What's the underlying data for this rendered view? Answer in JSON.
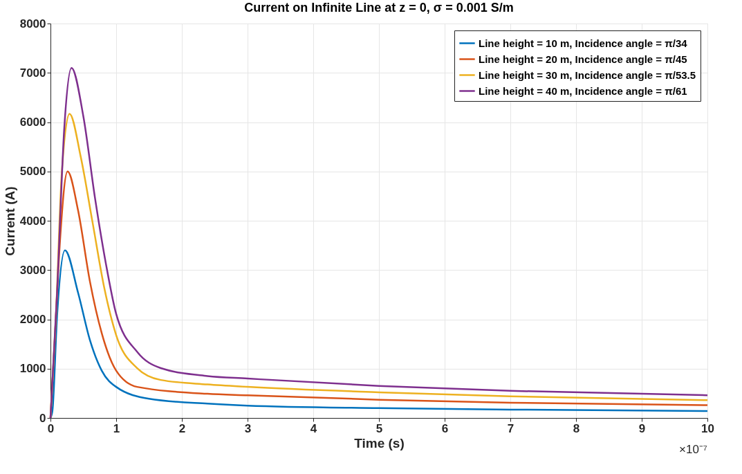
{
  "chart_data": {
    "type": "line",
    "title": "Current on Infinite Line at z = 0, σ = 0.001 S/m",
    "xlabel": "Time (s)",
    "ylabel": "Current (A)",
    "xlim": [
      0,
      10
    ],
    "xticks": [
      0,
      1,
      2,
      3,
      4,
      5,
      6,
      7,
      8,
      9,
      10
    ],
    "ylim": [
      0,
      8000
    ],
    "yticks": [
      0,
      1000,
      2000,
      3000,
      4000,
      5000,
      6000,
      7000,
      8000
    ],
    "grid": true,
    "legend": "top right",
    "line_style": "solid",
    "marker": "none",
    "annotations": [
      "×10⁻⁷"
    ],
    "series": [
      {
        "name": "Line height = 10 m, Incidence angle = π/34",
        "color": "#0072bd",
        "x": [
          0,
          0.03,
          0.1,
          0.22,
          0.42,
          0.6,
          0.78,
          1.0,
          1.5,
          2.39,
          3,
          5,
          7,
          10
        ],
        "values": [
          0,
          150,
          2060,
          3400,
          2540,
          1580,
          960,
          630,
          390,
          290,
          250,
          200,
          170,
          140
        ]
      },
      {
        "name": "Line height = 20 m, Incidence angle = π/45",
        "color": "#d95319",
        "x": [
          0,
          0.065,
          0.14,
          0.26,
          0.42,
          0.6,
          0.78,
          1.0,
          1.32,
          2.39,
          3,
          5,
          7,
          10
        ],
        "values": [
          0,
          1580,
          3490,
          5000,
          4210,
          2770,
          1720,
          960,
          630,
          490,
          460,
          370,
          310,
          260
        ]
      },
      {
        "name": "Line height = 30 m, Incidence angle = π/53.5",
        "color": "#edb120",
        "x": [
          0,
          0.083,
          0.17,
          0.29,
          0.46,
          0.64,
          0.82,
          1.0,
          1.32,
          1.68,
          2.39,
          3,
          5,
          7,
          10
        ],
        "values": [
          0,
          2060,
          4920,
          6170,
          5300,
          3970,
          2630,
          1680,
          1010,
          770,
          680,
          630,
          520,
          440,
          360
        ]
      },
      {
        "name": "Line height = 40 m, Incidence angle = π/61",
        "color": "#7e2f8e",
        "x": [
          0,
          0.1,
          0.21,
          0.32,
          0.5,
          0.68,
          0.86,
          1.0,
          1.32,
          1.68,
          2.39,
          3,
          5,
          7,
          10
        ],
        "values": [
          0,
          2540,
          5880,
          7100,
          6120,
          4440,
          3010,
          2110,
          1340,
          1010,
          850,
          800,
          650,
          550,
          460
        ]
      }
    ]
  }
}
